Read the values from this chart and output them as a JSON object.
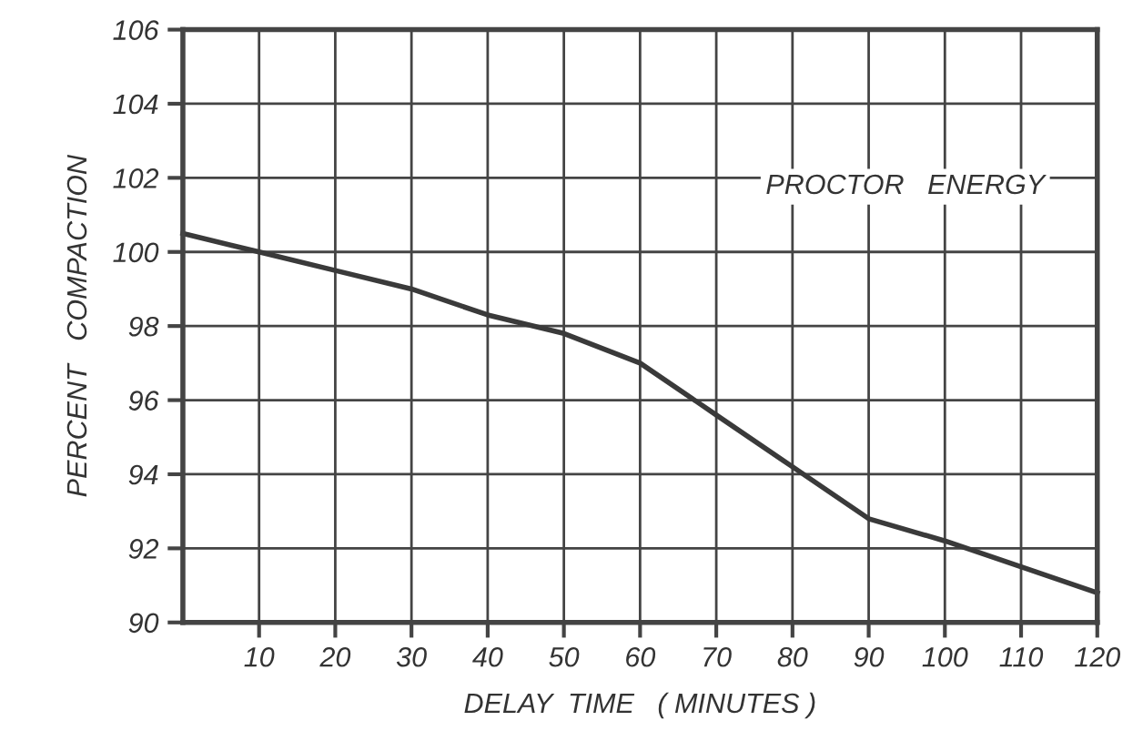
{
  "chart_data": {
    "type": "line",
    "xlabel": "DELAY  TIME   ( MINUTES )",
    "ylabel": "PERCENT   COMPACTION",
    "x": [
      0,
      10,
      20,
      30,
      40,
      50,
      60,
      70,
      80,
      90,
      100,
      110,
      120
    ],
    "series": [
      {
        "color": "#3a3a3a",
        "values": [
          100.5,
          100.0,
          99.5,
          99.0,
          98.3,
          97.8,
          97.0,
          95.6,
          94.2,
          92.8,
          92.2,
          91.5,
          90.8
        ]
      }
    ],
    "annotations": [
      "PROCTOR   ENERGY"
    ],
    "xlim": [
      0,
      120
    ],
    "xticks": [
      10,
      20,
      30,
      40,
      50,
      60,
      70,
      80,
      90,
      100,
      110,
      120
    ],
    "ylim": [
      90,
      106
    ],
    "yticks": [
      90,
      92,
      94,
      96,
      98,
      100,
      102,
      104,
      106
    ],
    "grid": true,
    "marker": "none",
    "line_style": "solid"
  }
}
